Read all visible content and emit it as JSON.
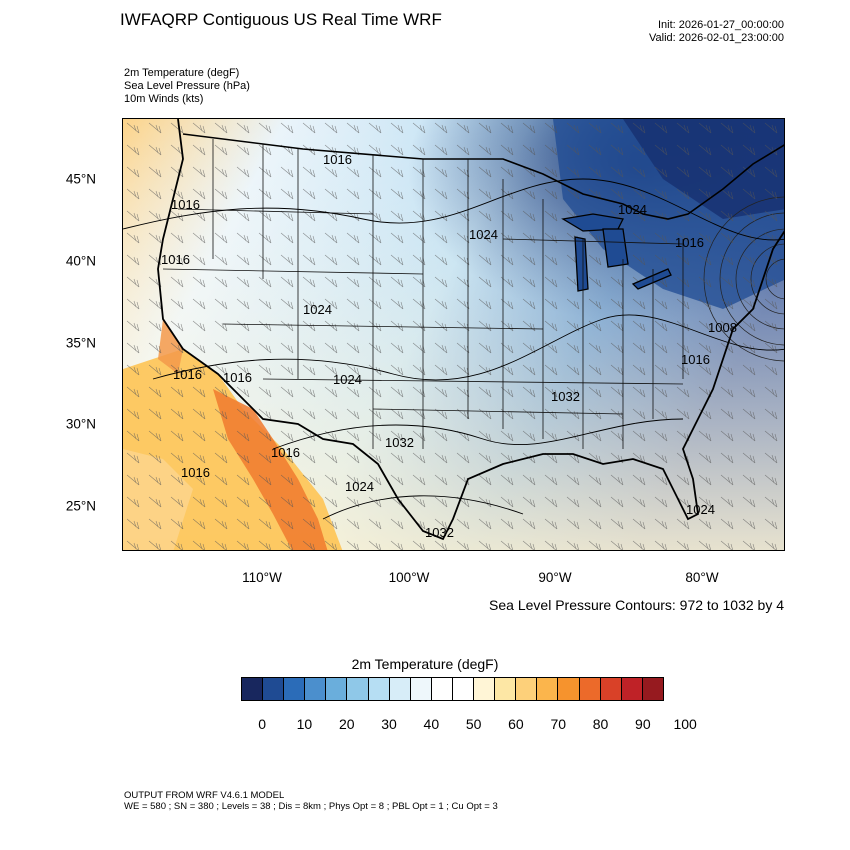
{
  "header": {
    "title": "IWFAQRP Contiguous US Real Time WRF",
    "init": "Init: 2026-01-27_00:00:00",
    "valid": "Valid: 2026-02-01_23:00:00"
  },
  "fields": [
    "2m Temperature   (degF)",
    "Sea Level Pressure   (hPa)",
    "10m Winds   (kts)"
  ],
  "map": {
    "lat_labels": [
      "45°N",
      "40°N",
      "35°N",
      "30°N",
      "25°N"
    ],
    "lon_labels": [
      "110°W",
      "100°W",
      "90°W",
      "80°W"
    ],
    "pressure_labels": [
      "1016",
      "1016",
      "1016",
      "1024",
      "1024",
      "1024",
      "1016",
      "1008",
      "1016",
      "1016",
      "1016",
      "1024",
      "1032",
      "1032",
      "1016",
      "1024",
      "1032",
      "1016",
      "1024"
    ],
    "colors": {
      "cold": "#1a3f8f",
      "cool": "#a6d8f5",
      "neutral": "#f5f9fb",
      "warm": "#fdc65c",
      "hot": "#f07a2e"
    }
  },
  "contour_note": "Sea Level Pressure Contours: 972 to 1032 by 4",
  "colorbar": {
    "title": "2m Temperature  (degF)",
    "colors": [
      "#18275e",
      "#1f4b93",
      "#2b6cb8",
      "#4b8fcd",
      "#6aaedc",
      "#8fc8e8",
      "#b6def3",
      "#d7edf8",
      "#eef7fb",
      "#ffffff",
      "#ffffff",
      "#fff5d6",
      "#fde7a5",
      "#fdd07a",
      "#fbb54c",
      "#f6932d",
      "#ec6a2a",
      "#d94128",
      "#bf2227",
      "#961a1f"
    ],
    "ticks": [
      "0",
      "10",
      "20",
      "30",
      "40",
      "50",
      "60",
      "70",
      "80",
      "90",
      "100"
    ]
  },
  "footer": {
    "line1": "OUTPUT FROM WRF V4.6.1 MODEL",
    "line2": "WE = 580 ; SN = 380 ; Levels = 38 ; Dis = 8km ; Phys Opt = 8 ; PBL Opt = 1 ; Cu Opt = 3"
  }
}
